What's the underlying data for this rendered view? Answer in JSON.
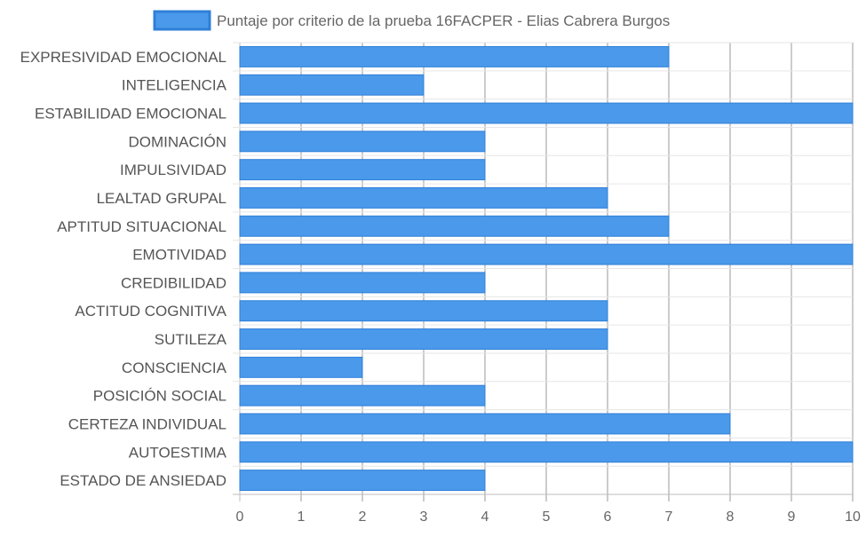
{
  "chart_data": {
    "type": "bar",
    "orientation": "horizontal",
    "categories": [
      "EXPRESIVIDAD EMOCIONAL",
      "INTELIGENCIA",
      "ESTABILIDAD EMOCIONAL",
      "DOMINACIÓN",
      "IMPULSIVIDAD",
      "LEALTAD GRUPAL",
      "APTITUD SITUACIONAL",
      "EMOTIVIDAD",
      "CREDIBILIDAD",
      "ACTITUD COGNITIVA",
      "SUTILEZA",
      "CONSCIENCIA",
      "POSICIÓN SOCIAL",
      "CERTEZA INDIVIDUAL",
      "AUTOESTIMA",
      "ESTADO DE ANSIEDAD"
    ],
    "series": [
      {
        "name": "Puntaje por criterio de la prueba 16FACPER - Elias Cabrera Burgos",
        "values": [
          7,
          3,
          10,
          4,
          4,
          6,
          7,
          10,
          4,
          6,
          6,
          2,
          4,
          8,
          10,
          4
        ],
        "color": "#4a99ea",
        "border_color": "#2f7fd8"
      }
    ],
    "xlim": [
      0,
      10
    ],
    "x_ticks": [
      "0",
      "1",
      "2",
      "3",
      "4",
      "5",
      "6",
      "7",
      "8",
      "9",
      "10"
    ],
    "grid": true,
    "legend_position": "top"
  }
}
